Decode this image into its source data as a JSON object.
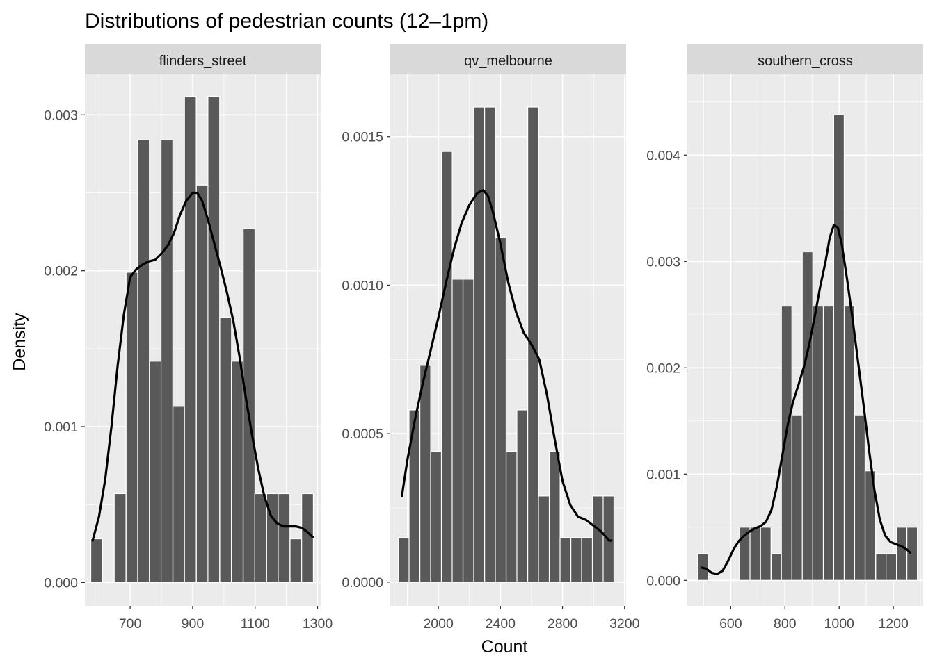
{
  "title": "Distributions of pedestrian counts (12–1pm)",
  "xlabel": "Count",
  "ylabel": "Density",
  "colors": {
    "panel_bg": "#ebebeb",
    "strip_bg": "#d9d9d9",
    "grid": "#ffffff",
    "bar_fill": "#595959",
    "bar_outline": "#ffffff",
    "density_line": "#000000"
  },
  "chart_data": [
    {
      "type": "bar",
      "facet": "flinders_street",
      "xlim": [
        555,
        1310
      ],
      "ylim": [
        -0.00015,
        0.00326
      ],
      "x_ticks": [
        700,
        900,
        1100,
        1300
      ],
      "y_ticks": [
        0.0,
        0.001,
        0.002,
        0.003
      ],
      "y_tick_labels": [
        "0.000",
        "0.001",
        "0.002",
        "0.003"
      ],
      "bin_width": 37.5,
      "bin_starts": [
        574,
        612,
        649,
        687,
        724,
        762,
        799,
        837,
        874,
        912,
        949,
        987,
        1024,
        1062,
        1099,
        1137,
        1174,
        1212,
        1249
      ],
      "values": [
        0.00028,
        0,
        0.00057,
        0.00199,
        0.00284,
        0.00142,
        0.00284,
        0.00113,
        0.00312,
        0.00255,
        0.00312,
        0.0017,
        0.00142,
        0.00227,
        0.00057,
        0.00057,
        0.00057,
        0.00028,
        0.00057
      ],
      "density_curve": {
        "x": [
          580,
          600,
          620,
          640,
          660,
          680,
          700,
          720,
          740,
          760,
          780,
          800,
          820,
          840,
          860,
          880,
          900,
          915,
          930,
          950,
          970,
          990,
          1010,
          1030,
          1050,
          1070,
          1090,
          1110,
          1130,
          1150,
          1170,
          1190,
          1210,
          1230,
          1250,
          1270,
          1285
        ],
        "y": [
          0.00027,
          0.00042,
          0.00066,
          0.001,
          0.00139,
          0.00172,
          0.00196,
          0.00201,
          0.00204,
          0.00206,
          0.00207,
          0.00211,
          0.00216,
          0.00224,
          0.00236,
          0.00245,
          0.0025,
          0.0025,
          0.00245,
          0.00232,
          0.00217,
          0.00202,
          0.00186,
          0.00168,
          0.00145,
          0.00119,
          0.00095,
          0.00073,
          0.00055,
          0.00043,
          0.00038,
          0.00036,
          0.00036,
          0.00036,
          0.00035,
          0.00032,
          0.00029
        ]
      }
    },
    {
      "type": "bar",
      "facet": "qv_melbourne",
      "xlim": [
        1690,
        3210
      ],
      "ylim": [
        -8e-05,
        0.00171
      ],
      "x_ticks": [
        2000,
        2400,
        2800,
        3200
      ],
      "y_ticks": [
        0.0,
        0.0005,
        0.001,
        0.0015
      ],
      "y_tick_labels": [
        "0.0000",
        "0.0005",
        "0.0010",
        "0.0015"
      ],
      "bin_width": 69.5,
      "bin_starts": [
        1742,
        1811,
        1881,
        1950,
        2020,
        2089,
        2159,
        2228,
        2298,
        2367,
        2437,
        2506,
        2576,
        2645,
        2715,
        2784,
        2854,
        2923,
        2993,
        3062
      ],
      "values": [
        0.00015,
        0.00058,
        0.00073,
        0.00044,
        0.00145,
        0.00102,
        0.00102,
        0.0016,
        0.0016,
        0.00116,
        0.00044,
        0.00058,
        0.0016,
        0.00029,
        0.00044,
        0.00015,
        0.00015,
        0.00015,
        0.00029,
        0.00029
      ],
      "density_curve": {
        "x": [
          1765,
          1800,
          1850,
          1900,
          1950,
          2000,
          2050,
          2100,
          2150,
          2200,
          2250,
          2290,
          2320,
          2350,
          2400,
          2450,
          2500,
          2550,
          2600,
          2650,
          2700,
          2750,
          2800,
          2850,
          2900,
          2950,
          3000,
          3050,
          3100,
          3115
        ],
        "y": [
          0.00029,
          0.00041,
          0.00055,
          0.00067,
          0.00078,
          0.00089,
          0.00101,
          0.00112,
          0.00121,
          0.00127,
          0.00131,
          0.00132,
          0.0013,
          0.00125,
          0.00114,
          0.00101,
          0.00091,
          0.00084,
          0.0008,
          0.00075,
          0.00063,
          0.00048,
          0.00034,
          0.00026,
          0.00022,
          0.00021,
          0.00019,
          0.00017,
          0.00014,
          0.00014
        ]
      }
    },
    {
      "type": "bar",
      "facet": "southern_cross",
      "xlim": [
        440,
        1310
      ],
      "ylim": [
        -0.00024,
        0.00476
      ],
      "x_ticks": [
        600,
        800,
        1000,
        1200
      ],
      "y_ticks": [
        0.0,
        0.001,
        0.002,
        0.003,
        0.004
      ],
      "y_tick_labels": [
        "0.000",
        "0.001",
        "0.002",
        "0.003",
        "0.004"
      ],
      "bin_width": 38.6,
      "bin_starts": [
        478,
        517,
        556,
        594,
        633,
        671,
        710,
        749,
        787,
        826,
        864,
        903,
        942,
        980,
        1019,
        1057,
        1096,
        1135,
        1173,
        1212,
        1250
      ],
      "values": [
        0.00025,
        0,
        0,
        0,
        0.0005,
        0.0005,
        0.0005,
        0.00025,
        0.00258,
        0.00155,
        0.00309,
        0.00258,
        0.00258,
        0.00438,
        0.00258,
        0.00155,
        0.00103,
        0.00025,
        0.00025,
        0.0005,
        0.0005
      ],
      "density_curve": {
        "x": [
          493,
          510,
          530,
          550,
          570,
          590,
          610,
          630,
          650,
          670,
          690,
          710,
          730,
          750,
          770,
          790,
          810,
          830,
          850,
          870,
          890,
          910,
          930,
          950,
          965,
          980,
          995,
          1010,
          1030,
          1050,
          1070,
          1090,
          1110,
          1130,
          1150,
          1170,
          1190,
          1210,
          1230,
          1250,
          1262
        ],
        "y": [
          0.00012,
          0.00011,
          7e-05,
          6e-05,
          9e-05,
          0.00018,
          0.00029,
          0.00037,
          0.00042,
          0.00046,
          0.00049,
          0.00051,
          0.00055,
          0.00066,
          0.00088,
          0.00117,
          0.00146,
          0.00168,
          0.00184,
          0.00201,
          0.00222,
          0.00248,
          0.00276,
          0.003,
          0.00322,
          0.00334,
          0.00332,
          0.00316,
          0.00282,
          0.00245,
          0.00205,
          0.00165,
          0.00123,
          0.00085,
          0.00057,
          0.00042,
          0.00036,
          0.00034,
          0.00032,
          0.00029,
          0.00026
        ]
      }
    }
  ]
}
